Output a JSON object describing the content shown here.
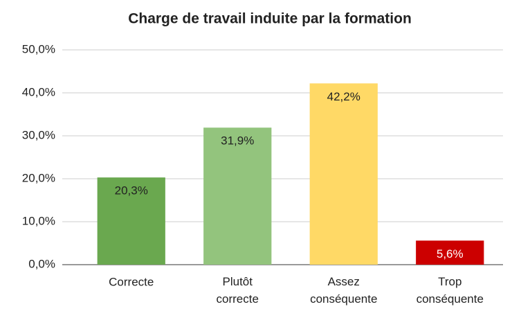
{
  "chart_data": {
    "type": "bar",
    "title": "Charge de travail induite par la formation",
    "categories": [
      "Correcte",
      "Plutôt correcte",
      "Assez conséquente",
      "Trop conséquente"
    ],
    "values": [
      20.3,
      31.9,
      42.2,
      5.6
    ],
    "value_labels": [
      "20,3%",
      "31,9%",
      "42,2%",
      "5,6%"
    ],
    "colors": [
      "#6aa84f",
      "#93c47d",
      "#ffd966",
      "#cc0000"
    ],
    "label_colors": [
      "#222222",
      "#222222",
      "#222222",
      "#ffffff"
    ],
    "ylim": [
      0,
      50
    ],
    "yticks": [
      {
        "value": 0,
        "label": "0,0%"
      },
      {
        "value": 10,
        "label": "10,0%"
      },
      {
        "value": 20,
        "label": "20,0%"
      },
      {
        "value": 30,
        "label": "30,0%"
      },
      {
        "value": 40,
        "label": "40,0%"
      },
      {
        "value": 50,
        "label": "50,0%"
      }
    ],
    "grid": true
  }
}
